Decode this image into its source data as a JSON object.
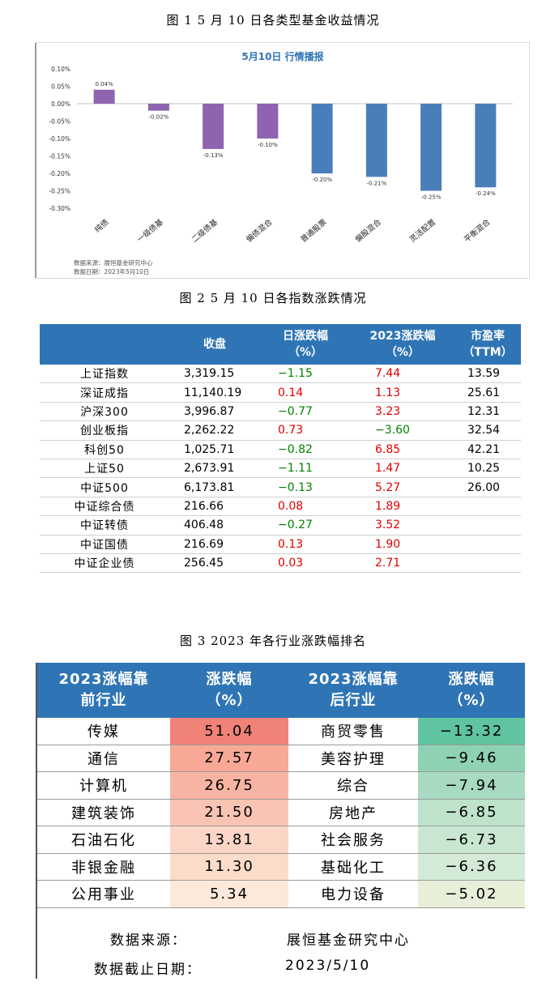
{
  "fig1_caption": "图 1  5 月 10 日各类型基金收益情况",
  "fig2_caption": "图 2  5 月 10 日各指数涨跌情况",
  "fig3_caption": "图 3  2023 年各行业涨跌幅排名",
  "chart_data": {
    "type": "bar",
    "title": "5月10日  行情播报",
    "categories": [
      "纯债",
      "一级债基",
      "二级债基",
      "偏债混合",
      "普通股票",
      "偏股混合",
      "灵活配置",
      "平衡混合"
    ],
    "values": [
      0.04,
      -0.02,
      -0.13,
      -0.1,
      -0.2,
      -0.21,
      -0.25,
      -0.24
    ],
    "value_labels": [
      "0.04%",
      "-0.02%",
      "-0.13%",
      "-0.10%",
      "-0.20%",
      "-0.21%",
      "-0.25%",
      "-0.24%"
    ],
    "y_ticks": [
      "0.10%",
      "0.05%",
      "0.00%",
      "-0.05%",
      "-0.10%",
      "-0.15%",
      "-0.20%",
      "-0.25%",
      "-0.30%"
    ],
    "ylim": [
      -0.3,
      0.1
    ],
    "colors": [
      "#8e63b0",
      "#8e63b0",
      "#8e63b0",
      "#8e63b0",
      "#4a7ebb",
      "#4a7ebb",
      "#4a7ebb",
      "#4a7ebb"
    ],
    "source_line": "数据来源：展恒基金研究中心",
    "date_line": "数据日期：2023年5月10日"
  },
  "table2": {
    "headers": [
      "",
      "收盘",
      "日涨跌幅\n（%）",
      "2023涨跌幅\n（%）",
      "市盈率\n（TTM）"
    ],
    "rows": [
      [
        "上证指数",
        "3,319.15",
        "−1.15",
        "7.44",
        "13.59"
      ],
      [
        "深证成指",
        "11,140.19",
        "0.14",
        "1.13",
        "25.61"
      ],
      [
        "沪深300",
        "3,996.87",
        "−0.77",
        "3.23",
        "12.31"
      ],
      [
        "创业板指",
        "2,262.22",
        "0.73",
        "−3.60",
        "32.54"
      ],
      [
        "科创50",
        "1,025.71",
        "−0.82",
        "6.85",
        "42.21"
      ],
      [
        "上证50",
        "2,673.91",
        "−1.11",
        "1.47",
        "10.25"
      ],
      [
        "中证500",
        "6,173.81",
        "−0.13",
        "5.27",
        "26.00"
      ],
      [
        "中证综合债",
        "216.66",
        "0.08",
        "1.89",
        ""
      ],
      [
        "中证转债",
        "406.48",
        "−0.27",
        "3.52",
        ""
      ],
      [
        "中证国债",
        "216.69",
        "0.13",
        "1.90",
        ""
      ],
      [
        "中证企业债",
        "256.45",
        "0.03",
        "2.71",
        ""
      ]
    ]
  },
  "table3": {
    "headers": [
      "2023涨幅靠\n前行业",
      "涨跌幅\n（%）",
      "2023涨幅靠\n后行业",
      "涨跌幅\n（%）"
    ],
    "rows": [
      [
        "传媒",
        "51.04",
        "商贸零售",
        "−13.32"
      ],
      [
        "通信",
        "27.57",
        "美容护理",
        "−9.46"
      ],
      [
        "计算机",
        "26.75",
        "综合",
        "−7.94"
      ],
      [
        "建筑装饰",
        "21.50",
        "房地产",
        "−6.85"
      ],
      [
        "石油石化",
        "13.81",
        "社会服务",
        "−6.73"
      ],
      [
        "非银金融",
        "11.30",
        "基础化工",
        "−6.36"
      ],
      [
        "公用事业",
        "5.34",
        "电力设备",
        "−5.02"
      ]
    ],
    "top_colors": [
      "#f08277",
      "#f7a995",
      "#f8b4a2",
      "#f9c4b4",
      "#fbd5c6",
      "#fbdcc9",
      "#fde9d9"
    ],
    "bottom_colors": [
      "#5fc49f",
      "#8fd2b3",
      "#a7dac0",
      "#bfe2cb",
      "#c9e6d1",
      "#d3ead7",
      "#e8efd9"
    ],
    "source_label": "数据来源：",
    "source_value": "展恒基金研究中心",
    "date_label": "数据截止日期：",
    "date_value": "2023/5/10"
  }
}
